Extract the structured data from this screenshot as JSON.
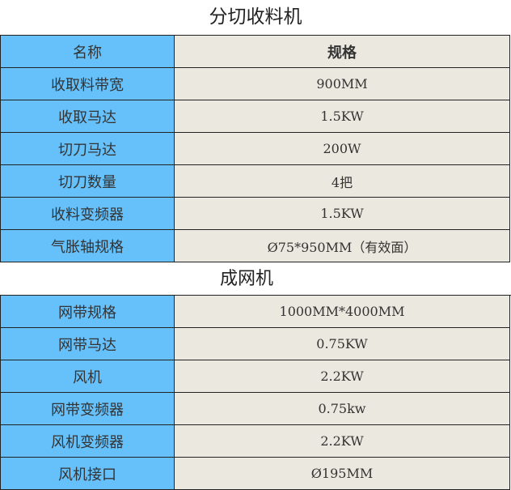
{
  "section1": {
    "title": "分切收料机",
    "header": {
      "name": "名称",
      "spec": "规格"
    },
    "rows": [
      {
        "name": "收取料带宽",
        "spec": "900MM"
      },
      {
        "name": "收取马达",
        "spec": "1.5KW"
      },
      {
        "name": "切刀马达",
        "spec": "200W"
      },
      {
        "name": "切刀数量",
        "spec": "4把"
      },
      {
        "name": "收料变频器",
        "spec": "1.5KW"
      },
      {
        "name": "气胀轴规格",
        "spec": "Ø75*950MM（有效面）"
      }
    ]
  },
  "section2": {
    "title": "成网机",
    "rows": [
      {
        "name": "网带规格",
        "spec": "1000MM*4000MM"
      },
      {
        "name": "网带马达",
        "spec": "0.75KW"
      },
      {
        "name": "风机",
        "spec": "2.2KW"
      },
      {
        "name": "网带变频器",
        "spec": "0.75kw"
      },
      {
        "name": "风机变频器",
        "spec": "2.2KW"
      },
      {
        "name": "风机接口",
        "spec": "Ø195MM"
      }
    ]
  },
  "colors": {
    "key_cell": "#66c1fb",
    "value_cell": "#ebe8df"
  }
}
